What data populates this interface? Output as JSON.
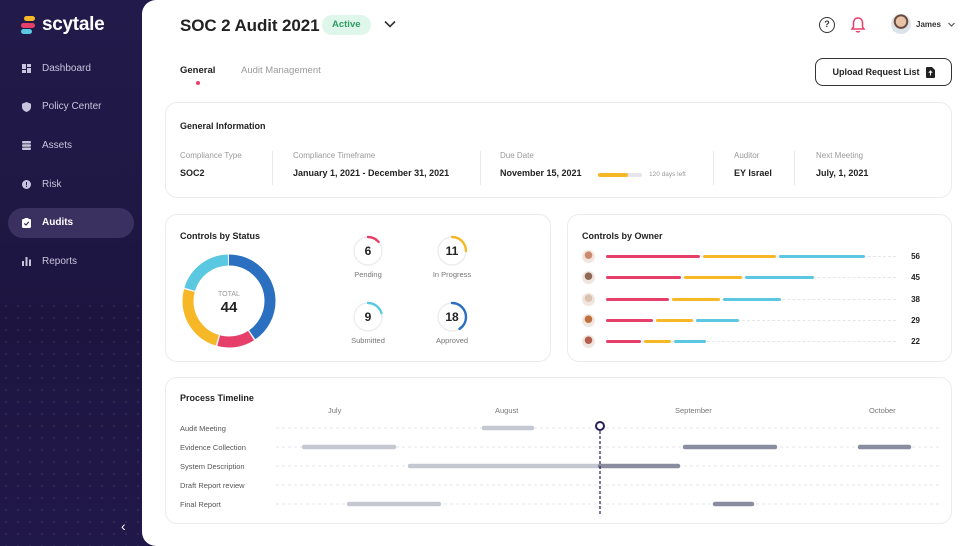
{
  "app": {
    "name": "scytale"
  },
  "sidebar": {
    "items": [
      {
        "label": "Dashboard",
        "icon": "dashboard-icon",
        "active": false
      },
      {
        "label": "Policy Center",
        "icon": "shield-icon",
        "active": false
      },
      {
        "label": "Assets",
        "icon": "stack-icon",
        "active": false
      },
      {
        "label": "Risk",
        "icon": "alert-icon",
        "active": false
      },
      {
        "label": "Audits",
        "icon": "clipboard-icon",
        "active": true
      },
      {
        "label": "Reports",
        "icon": "bar-chart-icon",
        "active": false
      }
    ],
    "collapse_glyph": "‹"
  },
  "header": {
    "title": "SOC 2 Audit 2021",
    "status": "Active",
    "user_name": "James"
  },
  "tabs": [
    {
      "label": "General",
      "active": true
    },
    {
      "label": "Audit Management",
      "active": false
    }
  ],
  "upload_button": {
    "label": "Upload Request List"
  },
  "general_info": {
    "title": "General Information",
    "fields": [
      {
        "label": "Compliance Type",
        "value": "SOC2"
      },
      {
        "label": "Compliance Timeframe",
        "value": "January 1, 2021 - December 31, 2021"
      },
      {
        "label": "Due Date",
        "value": "November 15, 2021"
      },
      {
        "label": "Auditor",
        "value": "EY Israel"
      },
      {
        "label": "Next Meeting",
        "value": "July, 1, 2021"
      }
    ],
    "due_progress": 0.68,
    "days_left": "120 days left"
  },
  "controls_by_status": {
    "title": "Controls by Status",
    "total_label": "TOTAL",
    "total": "44",
    "statuses": [
      {
        "value": "6",
        "label": "Pending",
        "color": "#e6406a"
      },
      {
        "value": "11",
        "label": "In Progress",
        "color": "#f6b826"
      },
      {
        "value": "9",
        "label": "Submitted",
        "color": "#5ac8e0"
      },
      {
        "value": "18",
        "label": "Approved",
        "color": "#2a6fc0"
      }
    ]
  },
  "controls_by_owner": {
    "title": "Controls by Owner",
    "owners": [
      {
        "count": "56",
        "avatar_color": "#c98a6d"
      },
      {
        "count": "45",
        "avatar_color": "#8d6a55"
      },
      {
        "count": "38",
        "avatar_color": "#d9c2b0"
      },
      {
        "count": "29",
        "avatar_color": "#c0703e"
      },
      {
        "count": "22",
        "avatar_color": "#b45f4d"
      }
    ],
    "series_colors": [
      "#e6406a",
      "#f6b826",
      "#5ac8e0"
    ]
  },
  "timeline": {
    "title": "Process Timeline",
    "months": [
      "July",
      "August",
      "September",
      "October"
    ],
    "rows": [
      "Audit Meeting",
      "Evidence Collection",
      "System Description",
      "Draft Report review",
      "Final Report"
    ]
  }
}
